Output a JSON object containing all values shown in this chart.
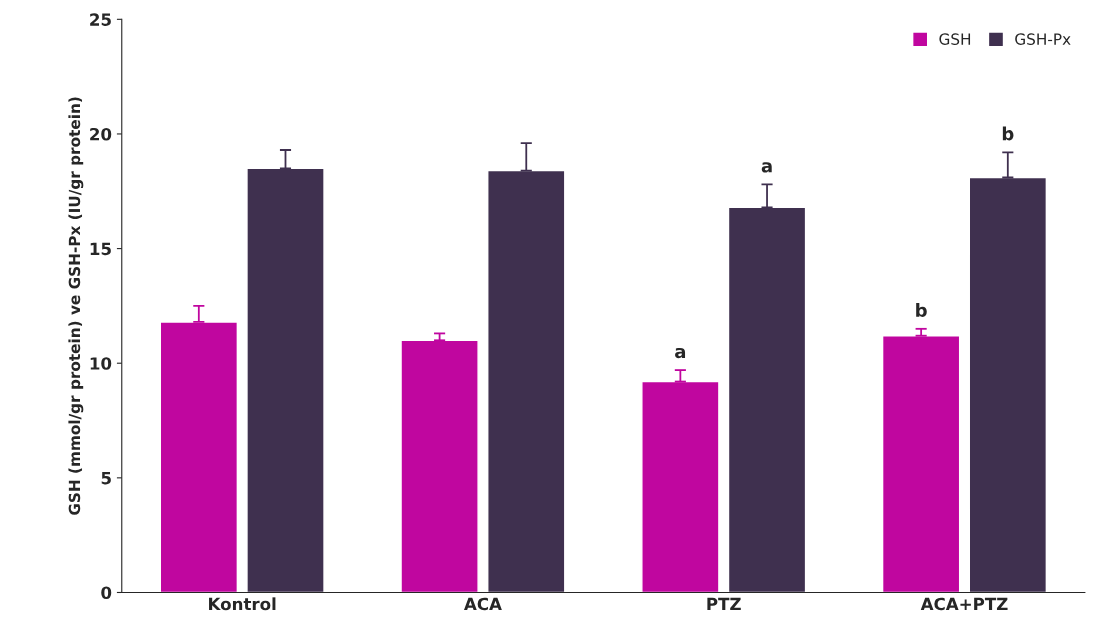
{
  "chart_data": {
    "type": "bar",
    "ylabel": "GSH (mmol/gr protein) ve GSH-Px (IU/gr protein)",
    "categories": [
      "Kontrol",
      "ACA",
      "PTZ",
      "ACA+PTZ"
    ],
    "series": [
      {
        "name": "GSH",
        "color": "#c0069f",
        "values": [
          11.8,
          11.0,
          9.2,
          11.2
        ],
        "errors": [
          0.7,
          0.3,
          0.5,
          0.3
        ]
      },
      {
        "name": "GSH-Px",
        "color": "#3f304f",
        "values": [
          18.5,
          18.4,
          16.8,
          18.1
        ],
        "errors": [
          0.8,
          1.2,
          1.0,
          1.1
        ]
      }
    ],
    "ylim": [
      0,
      25
    ],
    "yticks": [
      0,
      5,
      10,
      15,
      20,
      25
    ],
    "annotations": [
      {
        "text": "a",
        "x": "PTZ",
        "y": 9.2
      },
      {
        "text": "a",
        "x": "PTZ",
        "y": 16.8
      },
      {
        "text": "b",
        "x": "ACA+PTZ",
        "y": 11.2
      },
      {
        "text": "b",
        "x": "ACA+PTZ",
        "y": 18.1
      }
    ],
    "legend": "top right",
    "grid": false
  }
}
